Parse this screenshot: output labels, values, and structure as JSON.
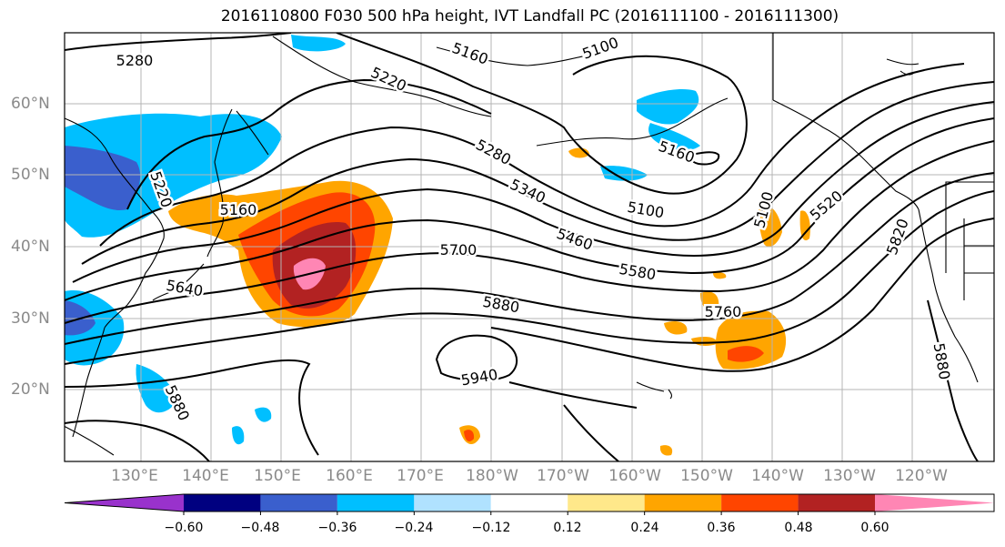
{
  "title": "2016110800 F030 500 hPa height, IVT Landfall PC (2016111100 - 2016111300)",
  "latitude_labels": [
    "60°N",
    "50°N",
    "40°N",
    "30°N",
    "20°N"
  ],
  "longitude_labels": [
    "130°E",
    "140°E",
    "150°E",
    "160°E",
    "170°E",
    "180°W",
    "170°W",
    "160°W",
    "150°W",
    "140°W",
    "130°W",
    "120°W"
  ],
  "contour_labels": [
    "5280",
    "5160",
    "5100",
    "5220",
    "5280",
    "5340",
    "5460",
    "5580",
    "5700",
    "5880",
    "5940",
    "5160",
    "5100",
    "5160",
    "5100",
    "5520",
    "5820",
    "5880",
    "5760",
    "5220",
    "5640",
    "5880"
  ],
  "colorbar": {
    "ticks": [
      "−0.60",
      "−0.48",
      "−0.36",
      "−0.24",
      "−0.12",
      "0.12",
      "0.24",
      "0.36",
      "0.48",
      "0.60"
    ],
    "colors": [
      "#9932cc",
      "#000080",
      "#3a5fcd",
      "#00bfff",
      "#b0e2ff",
      "#ffffff",
      "#ffe88a",
      "#ffa500",
      "#ff4500",
      "#b22222",
      "#ff86b4"
    ]
  }
}
